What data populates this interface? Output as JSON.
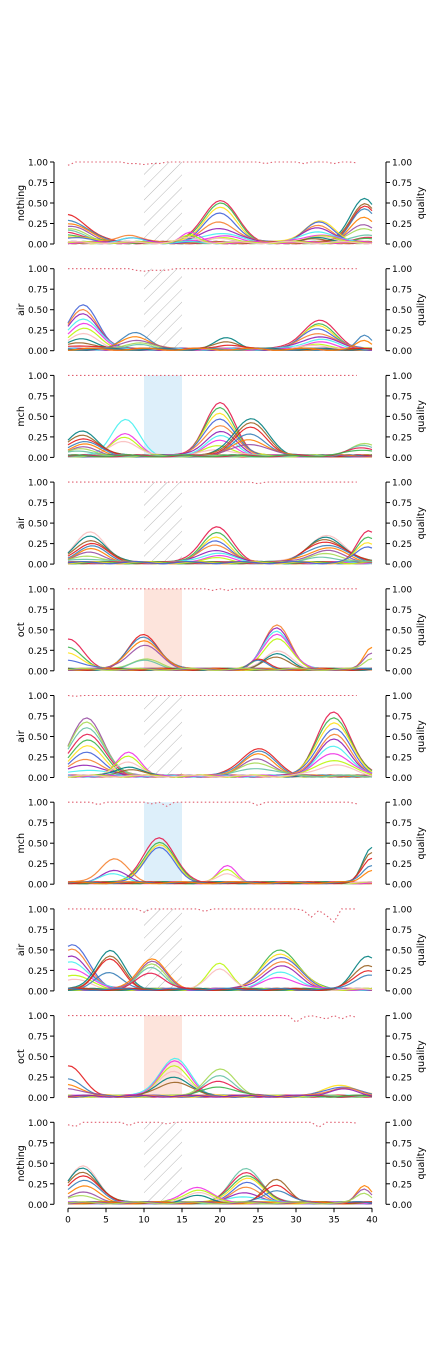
{
  "x_ticks": [
    "0",
    "5",
    "10",
    "15",
    "20",
    "25",
    "30",
    "35",
    "40"
  ],
  "y_ticks": [
    "0.00",
    "0.25",
    "0.50",
    "0.75",
    "1.00"
  ],
  "right_axis_label": "quality",
  "highlight_colors": {
    "mch": "#ddeffa",
    "oct": "#fde4dc"
  },
  "line_palette": [
    "#e6194b",
    "#3cb44b",
    "#ffe119",
    "#4363d8",
    "#f58231",
    "#911eb4",
    "#46f0f0",
    "#f032e6",
    "#bcf60c",
    "#fabebe",
    "#008080",
    "#9a6324",
    "#e41a1c",
    "#377eb8",
    "#ff7f00",
    "#984ea3",
    "#a6d854",
    "#66c2a5"
  ],
  "chart_data": [
    {
      "type": "line",
      "ylabel": "nothing",
      "xlim": [
        0,
        40
      ],
      "ylim": [
        0,
        1
      ],
      "window": {
        "x": [
          10,
          15
        ],
        "style": "hatch"
      },
      "peaks": [
        {
          "center": 20,
          "width": 2.2,
          "heights": [
            0.52,
            0.48,
            0.42,
            0.35,
            0.25,
            0.18,
            0.12,
            0.08,
            0.05,
            0.04
          ]
        },
        {
          "center": 39,
          "width": 1.8,
          "heights": [
            0.55,
            0.48,
            0.44,
            0.4,
            0.3,
            0.22,
            0.18,
            0.1,
            0.06,
            0.04
          ]
        },
        {
          "center": 33,
          "width": 2.0,
          "heights": [
            0.26,
            0.24,
            0.2,
            0.18,
            0.14,
            0.1,
            0.08,
            0.06,
            0.05,
            0.04
          ]
        },
        {
          "center": 0,
          "width": 2.5,
          "heights": [
            0.34,
            0.28,
            0.24,
            0.2,
            0.16,
            0.14,
            0.12,
            0.1,
            0.08,
            0.06
          ]
        },
        {
          "center": 8,
          "width": 1.5,
          "heights": [
            0.1,
            0.06,
            0.05
          ]
        },
        {
          "center": 16,
          "width": 1.2,
          "heights": [
            0.12,
            0.08,
            0.06
          ]
        }
      ],
      "quality": [
        0.96,
        1.0,
        1.0,
        1.0,
        1.0,
        1.0,
        1.0,
        1.0,
        0.98,
        0.98,
        0.97,
        0.98,
        0.98,
        1.0,
        1.0,
        1.0,
        1.0,
        1.0,
        1.0,
        1.0,
        1.0,
        1.0,
        1.0,
        1.0,
        1.0,
        1.0,
        0.98,
        1.0,
        1.0,
        1.0,
        1.0,
        0.98,
        1.0,
        1.0,
        1.0,
        0.98,
        1.0,
        1.0,
        0.99
      ]
    },
    {
      "type": "line",
      "ylabel": "air",
      "xlim": [
        0,
        40
      ],
      "ylim": [
        0,
        1
      ],
      "window": {
        "x": [
          10,
          15
        ],
        "style": "hatch"
      },
      "peaks": [
        {
          "center": 2,
          "width": 2.0,
          "heights": [
            0.53,
            0.48,
            0.44,
            0.38,
            0.32,
            0.25,
            0.18,
            0.12,
            0.08,
            0.05
          ]
        },
        {
          "center": 9,
          "width": 1.8,
          "heights": [
            0.2,
            0.16,
            0.12,
            0.08,
            0.05
          ]
        },
        {
          "center": 33,
          "width": 2.2,
          "heights": [
            0.35,
            0.3,
            0.28,
            0.25,
            0.2,
            0.16,
            0.12,
            0.08,
            0.05,
            0.04
          ]
        },
        {
          "center": 21,
          "width": 1.5,
          "heights": [
            0.14,
            0.1,
            0.06
          ]
        },
        {
          "center": 39,
          "width": 1.0,
          "heights": [
            0.16,
            0.1
          ]
        }
      ],
      "quality": [
        1.0,
        1.0,
        1.0,
        1.0,
        1.0,
        1.0,
        1.0,
        1.0,
        1.0,
        0.98,
        0.97,
        0.98,
        0.98,
        0.98,
        1.0,
        1.0,
        1.0,
        1.0,
        1.0,
        1.0,
        1.0,
        1.0,
        1.0,
        1.0,
        1.0,
        1.0,
        1.0,
        1.0,
        1.0,
        1.0,
        1.0,
        1.0,
        1.0,
        1.0,
        1.0,
        1.0,
        1.0,
        1.0,
        1.0
      ]
    },
    {
      "type": "line",
      "ylabel": "mch",
      "xlim": [
        0,
        40
      ],
      "ylim": [
        0,
        1
      ],
      "window": {
        "x": [
          10,
          15
        ],
        "style": "fill",
        "color": "mch"
      },
      "peaks": [
        {
          "center": 7.5,
          "width": 1.8,
          "heights": [
            0.44,
            0.26,
            0.22,
            0.18
          ]
        },
        {
          "center": 2,
          "width": 2.0,
          "heights": [
            0.3,
            0.26,
            0.22,
            0.18,
            0.14,
            0.1,
            0.08,
            0.06
          ]
        },
        {
          "center": 20,
          "width": 2.0,
          "heights": [
            0.64,
            0.58,
            0.52,
            0.46,
            0.38,
            0.3,
            0.24,
            0.18,
            0.12,
            0.08
          ]
        },
        {
          "center": 24,
          "width": 2.2,
          "heights": [
            0.46,
            0.4,
            0.34,
            0.26,
            0.2,
            0.15
          ]
        },
        {
          "center": 39,
          "width": 2.0,
          "heights": [
            0.14,
            0.12,
            0.1,
            0.08
          ]
        }
      ],
      "quality": [
        1.0,
        1.0,
        1.0,
        1.0,
        1.0,
        1.0,
        1.0,
        1.0,
        1.0,
        1.0,
        1.0,
        1.0,
        1.0,
        1.0,
        1.0,
        1.0,
        1.0,
        1.0,
        1.0,
        1.0,
        1.0,
        1.0,
        1.0,
        1.0,
        1.0,
        1.0,
        1.0,
        1.0,
        1.0,
        1.0,
        1.0,
        1.0,
        1.0,
        1.0,
        1.0,
        1.0,
        1.0,
        1.0,
        1.0
      ]
    },
    {
      "type": "line",
      "ylabel": "air",
      "xlim": [
        0,
        40
      ],
      "ylim": [
        0,
        1
      ],
      "window": {
        "x": [
          10,
          15
        ],
        "style": "hatch"
      },
      "peaks": [
        {
          "center": 3,
          "width": 2.0,
          "heights": [
            0.37,
            0.33,
            0.28,
            0.24,
            0.2,
            0.16,
            0.12,
            0.08,
            0.05
          ]
        },
        {
          "center": 19.5,
          "width": 2.0,
          "heights": [
            0.44,
            0.36,
            0.3,
            0.26,
            0.22,
            0.16,
            0.12,
            0.08,
            0.05
          ]
        },
        {
          "center": 34,
          "width": 2.5,
          "heights": [
            0.32,
            0.3,
            0.28,
            0.26,
            0.22,
            0.18,
            0.14,
            0.1,
            0.06
          ]
        },
        {
          "center": 39.5,
          "width": 1.5,
          "heights": [
            0.38,
            0.3,
            0.24,
            0.2
          ]
        }
      ],
      "quality": [
        1.0,
        1.0,
        1.0,
        1.0,
        1.0,
        1.0,
        1.0,
        1.0,
        1.0,
        1.0,
        1.0,
        1.0,
        1.0,
        1.0,
        1.0,
        1.0,
        1.0,
        1.0,
        1.0,
        1.0,
        1.0,
        1.0,
        1.0,
        1.0,
        1.0,
        0.98,
        1.0,
        1.0,
        1.0,
        1.0,
        1.0,
        1.0,
        1.0,
        1.0,
        1.0,
        1.0,
        1.0,
        1.0,
        1.0
      ]
    },
    {
      "type": "line",
      "ylabel": "oct",
      "xlim": [
        0,
        40
      ],
      "ylim": [
        0,
        1
      ],
      "window": {
        "x": [
          10,
          15
        ],
        "style": "fill",
        "color": "oct"
      },
      "peaks": [
        {
          "center": 10,
          "width": 2.0,
          "heights": [
            0.42,
            0.4,
            0.36,
            0.3,
            0.12,
            0.1
          ]
        },
        {
          "center": 0,
          "width": 2.0,
          "heights": [
            0.36,
            0.26,
            0.2,
            0.12
          ]
        },
        {
          "center": 27.5,
          "width": 1.8,
          "heights": [
            0.53,
            0.5,
            0.47,
            0.44,
            0.38,
            0.22,
            0.18,
            0.14
          ]
        },
        {
          "center": 25,
          "width": 1.2,
          "heights": [
            0.12,
            0.1
          ]
        },
        {
          "center": 40,
          "width": 1.0,
          "heights": [
            0.26,
            0.2,
            0.14
          ]
        }
      ],
      "quality": [
        1.0,
        1.0,
        1.0,
        1.0,
        1.0,
        1.0,
        1.0,
        1.0,
        1.0,
        1.0,
        1.0,
        1.0,
        1.0,
        1.0,
        1.0,
        1.0,
        1.0,
        1.0,
        1.0,
        0.98,
        1.0,
        0.98,
        1.0,
        1.0,
        1.0,
        1.0,
        1.0,
        1.0,
        1.0,
        1.0,
        1.0,
        1.0,
        1.0,
        1.0,
        1.0,
        1.0,
        1.0,
        1.0,
        1.0
      ]
    },
    {
      "type": "line",
      "ylabel": "air",
      "xlim": [
        0,
        40
      ],
      "ylim": [
        0,
        1
      ],
      "window": {
        "x": [
          10,
          15
        ],
        "style": "hatch"
      },
      "peaks": [
        {
          "center": 2.5,
          "width": 2.2,
          "heights": [
            0.7,
            0.66,
            0.6,
            0.52,
            0.44,
            0.36,
            0.28,
            0.2,
            0.14,
            0.08
          ]
        },
        {
          "center": 8,
          "width": 1.6,
          "heights": [
            0.28,
            0.24,
            0.18,
            0.12,
            0.08
          ]
        },
        {
          "center": 25,
          "width": 2.2,
          "heights": [
            0.34,
            0.3,
            0.26,
            0.2,
            0.16,
            0.1
          ]
        },
        {
          "center": 35,
          "width": 2.2,
          "heights": [
            0.78,
            0.72,
            0.66,
            0.58,
            0.5,
            0.44,
            0.36,
            0.28,
            0.2,
            0.14
          ]
        }
      ],
      "quality": [
        1.0,
        0.99,
        1.0,
        1.0,
        1.0,
        1.0,
        1.0,
        1.0,
        1.0,
        1.0,
        1.0,
        1.0,
        1.0,
        1.0,
        1.0,
        1.0,
        1.0,
        1.0,
        1.0,
        1.0,
        1.0,
        1.0,
        1.0,
        1.0,
        1.0,
        1.0,
        1.0,
        1.0,
        1.0,
        1.0,
        1.0,
        1.0,
        1.0,
        1.0,
        1.0,
        1.0,
        1.0,
        1.0,
        1.0
      ]
    },
    {
      "type": "line",
      "ylabel": "mch",
      "xlim": [
        0,
        40
      ],
      "ylim": [
        0,
        1
      ],
      "window": {
        "x": [
          10,
          15
        ],
        "style": "fill",
        "color": "mch"
      },
      "peaks": [
        {
          "center": 12,
          "width": 2.0,
          "heights": [
            0.56,
            0.5,
            0.46,
            0.42
          ]
        },
        {
          "center": 6,
          "width": 1.8,
          "heights": [
            0.29,
            0.14,
            0.1
          ]
        },
        {
          "center": 21,
          "width": 1.2,
          "heights": [
            0.2,
            0.16,
            0.12
          ]
        },
        {
          "center": 40,
          "width": 1.2,
          "heights": [
            0.42,
            0.36,
            0.3,
            0.22,
            0.16
          ]
        }
      ],
      "quality": [
        1.0,
        1.0,
        1.0,
        1.0,
        0.97,
        1.0,
        1.0,
        1.0,
        1.0,
        1.0,
        1.0,
        0.98,
        1.0,
        0.95,
        1.0,
        1.0,
        1.0,
        1.0,
        1.0,
        1.0,
        1.0,
        1.0,
        1.0,
        1.0,
        1.0,
        0.96,
        1.0,
        1.0,
        1.0,
        1.0,
        1.0,
        1.0,
        1.0,
        1.0,
        1.0,
        1.0,
        1.0,
        1.0,
        0.98
      ]
    },
    {
      "type": "line",
      "ylabel": "air",
      "xlim": [
        0,
        40
      ],
      "ylim": [
        0,
        1
      ],
      "window": {
        "x": [
          10,
          15
        ],
        "style": "hatch"
      },
      "peaks": [
        {
          "center": 0.5,
          "width": 2.2,
          "heights": [
            0.54,
            0.48,
            0.4,
            0.34,
            0.26,
            0.18,
            0.12
          ]
        },
        {
          "center": 5.5,
          "width": 1.8,
          "heights": [
            0.48,
            0.4,
            0.36,
            0.2
          ]
        },
        {
          "center": 11,
          "width": 1.8,
          "heights": [
            0.38,
            0.34,
            0.3,
            0.26,
            0.2
          ]
        },
        {
          "center": 28,
          "width": 2.4,
          "heights": [
            0.48,
            0.44,
            0.4,
            0.34,
            0.28,
            0.2,
            0.14
          ]
        },
        {
          "center": 20,
          "width": 1.5,
          "heights": [
            0.32,
            0.26
          ]
        },
        {
          "center": 39.5,
          "width": 1.8,
          "heights": [
            0.4,
            0.3,
            0.24,
            0.18
          ]
        }
      ],
      "quality": [
        1.0,
        1.0,
        1.0,
        1.0,
        1.0,
        1.0,
        1.0,
        1.0,
        1.0,
        1.0,
        0.96,
        1.0,
        1.0,
        1.0,
        1.0,
        1.0,
        1.0,
        1.0,
        0.97,
        1.0,
        1.0,
        1.0,
        1.0,
        1.0,
        1.0,
        1.0,
        1.0,
        1.0,
        1.0,
        1.0,
        1.0,
        0.98,
        0.9,
        0.98,
        0.92,
        0.84,
        1.0,
        1.0,
        1.0
      ]
    },
    {
      "type": "line",
      "ylabel": "oct",
      "xlim": [
        0,
        40
      ],
      "ylim": [
        0,
        1
      ],
      "window": {
        "x": [
          10,
          15
        ],
        "style": "fill",
        "color": "oct"
      },
      "peaks": [
        {
          "center": 14,
          "width": 2.0,
          "heights": [
            0.46,
            0.42,
            0.36,
            0.3,
            0.24,
            0.18
          ]
        },
        {
          "center": 0,
          "width": 2.0,
          "heights": [
            0.36,
            0.2,
            0.14,
            0.1
          ]
        },
        {
          "center": 20,
          "width": 2.0,
          "heights": [
            0.32,
            0.24,
            0.18,
            0.12
          ]
        },
        {
          "center": 36,
          "width": 2.0,
          "heights": [
            0.14,
            0.12,
            0.1,
            0.08
          ]
        }
      ],
      "quality": [
        1.0,
        1.0,
        1.0,
        1.0,
        1.0,
        1.0,
        1.0,
        1.0,
        1.0,
        1.0,
        1.0,
        1.0,
        1.0,
        1.0,
        1.0,
        1.0,
        1.0,
        1.0,
        1.0,
        1.0,
        1.0,
        1.0,
        1.0,
        1.0,
        1.0,
        1.0,
        1.0,
        1.0,
        1.0,
        1.0,
        0.92,
        0.98,
        1.0,
        0.98,
        0.96,
        1.0,
        0.96,
        1.0,
        0.98
      ]
    },
    {
      "type": "line",
      "ylabel": "nothing",
      "xlim": [
        0,
        40
      ],
      "ylim": [
        0,
        1
      ],
      "window": {
        "x": [
          10,
          15
        ],
        "style": "hatch"
      },
      "peaks": [
        {
          "center": 2,
          "width": 2.0,
          "heights": [
            0.44,
            0.42,
            0.38,
            0.34,
            0.28,
            0.2,
            0.12,
            0.08
          ]
        },
        {
          "center": 23.5,
          "width": 2.0,
          "heights": [
            0.42,
            0.38,
            0.34,
            0.3,
            0.24,
            0.18,
            0.12,
            0.08
          ]
        },
        {
          "center": 17,
          "width": 1.8,
          "heights": [
            0.2,
            0.16,
            0.12,
            0.08
          ]
        },
        {
          "center": 27.5,
          "width": 1.6,
          "heights": [
            0.28,
            0.22,
            0.16
          ]
        },
        {
          "center": 39,
          "width": 1.0,
          "heights": [
            0.2,
            0.16,
            0.12
          ]
        }
      ],
      "quality": [
        0.97,
        0.95,
        1.0,
        1.0,
        1.0,
        1.0,
        1.0,
        1.0,
        0.96,
        1.0,
        1.0,
        1.0,
        1.0,
        0.98,
        1.0,
        1.0,
        1.0,
        1.0,
        1.0,
        1.0,
        1.0,
        1.0,
        1.0,
        1.0,
        1.0,
        1.0,
        1.0,
        1.0,
        1.0,
        1.0,
        1.0,
        1.0,
        1.0,
        0.94,
        1.0,
        1.0,
        1.0,
        1.0,
        0.99
      ]
    }
  ]
}
